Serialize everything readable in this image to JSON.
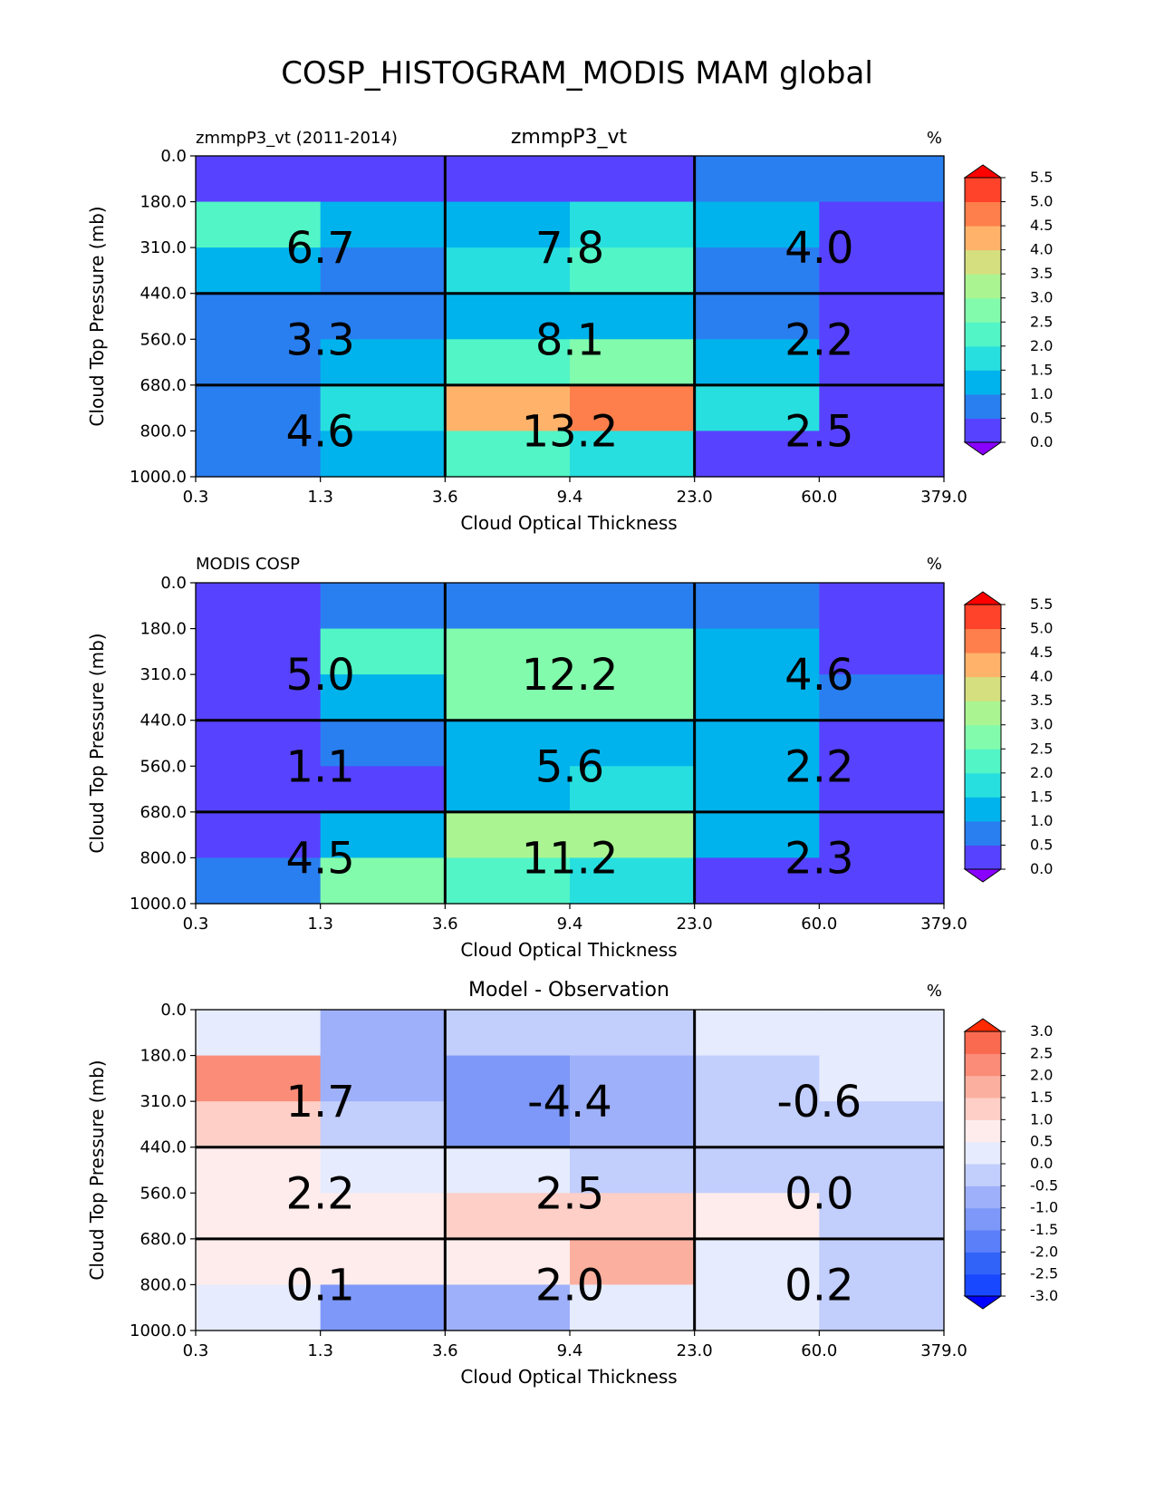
{
  "figure": {
    "title": "COSP_HISTOGRAM_MODIS MAM global"
  },
  "chart_data": [
    {
      "type": "heatmap",
      "title": "zmmpP3_vt",
      "subtitle_left": "zmmpP3_vt (2011-2014)",
      "units": "%",
      "xlabel": "Cloud Optical Thickness",
      "ylabel": "Cloud Top Pressure (mb)",
      "x_ticks": [
        "0.3",
        "1.3",
        "3.6",
        "9.4",
        "23.0",
        "60.0",
        "379.0"
      ],
      "y_ticks": [
        "0.0",
        "180.0",
        "310.0",
        "440.0",
        "560.0",
        "680.0",
        "800.0",
        "1000.0"
      ],
      "cells": [
        [
          0.0,
          0.0,
          0.0,
          0.0,
          0.6,
          0.6
        ],
        [
          2.3,
          1.4,
          1.4,
          1.8,
          1.4,
          0.3
        ],
        [
          1.4,
          0.8,
          1.8,
          2.3,
          0.8,
          0.3
        ],
        [
          0.8,
          0.8,
          1.4,
          1.4,
          0.8,
          0.3
        ],
        [
          0.8,
          1.4,
          2.3,
          2.8,
          1.4,
          0.3
        ],
        [
          0.8,
          1.8,
          4.3,
          4.8,
          1.8,
          0.3
        ],
        [
          0.8,
          1.4,
          2.3,
          1.8,
          0.3,
          0.3
        ]
      ],
      "group_labels": [
        [
          "6.7",
          "7.8",
          "4.0"
        ],
        [
          "3.3",
          "8.1",
          "2.2"
        ],
        [
          "4.6",
          "13.2",
          "2.5"
        ]
      ],
      "colorbar": {
        "ticks": [
          "0.0",
          "0.5",
          "1.0",
          "1.5",
          "2.0",
          "2.5",
          "3.0",
          "3.5",
          "4.0",
          "4.5",
          "5.0",
          "5.5"
        ],
        "levels": [
          0.0,
          0.5,
          1.0,
          1.5,
          2.0,
          2.5,
          3.0,
          3.5,
          4.0,
          4.5,
          5.0,
          5.5
        ],
        "under_color": "#8a00ff",
        "over_color": "#ff0000",
        "colors": [
          "#5743ff",
          "#2a7ff0",
          "#00b3ec",
          "#28dfdf",
          "#52f5c6",
          "#82fcac",
          "#aaf591",
          "#d5df7f",
          "#ffb36a",
          "#ff7f4c",
          "#ff432a"
        ]
      }
    },
    {
      "type": "heatmap",
      "title": "",
      "subtitle_left": "MODIS COSP",
      "units": "%",
      "xlabel": "Cloud Optical Thickness",
      "ylabel": "Cloud Top Pressure (mb)",
      "x_ticks": [
        "0.3",
        "1.3",
        "3.6",
        "9.4",
        "23.0",
        "60.0",
        "379.0"
      ],
      "y_ticks": [
        "0.0",
        "180.0",
        "310.0",
        "440.0",
        "560.0",
        "680.0",
        "800.0",
        "1000.0"
      ],
      "cells": [
        [
          0.3,
          0.8,
          0.8,
          0.8,
          0.8,
          0.3
        ],
        [
          0.3,
          2.3,
          2.8,
          2.8,
          1.4,
          0.3
        ],
        [
          0.3,
          1.4,
          2.8,
          2.8,
          1.4,
          0.8
        ],
        [
          0.3,
          0.8,
          1.4,
          1.4,
          1.4,
          0.3
        ],
        [
          0.3,
          0.3,
          1.4,
          1.8,
          1.4,
          0.3
        ],
        [
          0.3,
          1.4,
          3.3,
          3.3,
          1.4,
          0.3
        ],
        [
          0.8,
          2.8,
          2.3,
          1.8,
          0.3,
          0.3
        ]
      ],
      "group_labels": [
        [
          "5.0",
          "12.2",
          "4.6"
        ],
        [
          "1.1",
          "5.6",
          "2.2"
        ],
        [
          "4.5",
          "11.2",
          "2.3"
        ]
      ],
      "colorbar": {
        "ticks": [
          "0.0",
          "0.5",
          "1.0",
          "1.5",
          "2.0",
          "2.5",
          "3.0",
          "3.5",
          "4.0",
          "4.5",
          "5.0",
          "5.5"
        ],
        "levels": [
          0.0,
          0.5,
          1.0,
          1.5,
          2.0,
          2.5,
          3.0,
          3.5,
          4.0,
          4.5,
          5.0,
          5.5
        ],
        "under_color": "#8a00ff",
        "over_color": "#ff0000",
        "colors": [
          "#5743ff",
          "#2a7ff0",
          "#00b3ec",
          "#28dfdf",
          "#52f5c6",
          "#82fcac",
          "#aaf591",
          "#d5df7f",
          "#ffb36a",
          "#ff7f4c",
          "#ff432a"
        ]
      }
    },
    {
      "type": "heatmap",
      "title": "Model - Observation",
      "subtitle_left": "",
      "units": "%",
      "xlabel": "Cloud Optical Thickness",
      "ylabel": "Cloud Top Pressure (mb)",
      "x_ticks": [
        "0.3",
        "1.3",
        "3.6",
        "9.4",
        "23.0",
        "60.0",
        "379.0"
      ],
      "y_ticks": [
        "0.0",
        "180.0",
        "310.0",
        "440.0",
        "560.0",
        "680.0",
        "800.0",
        "1000.0"
      ],
      "cells": [
        [
          0.3,
          -0.8,
          -0.3,
          -0.3,
          0.3,
          0.3
        ],
        [
          2.3,
          -0.8,
          -1.3,
          -0.8,
          -0.3,
          0.3
        ],
        [
          1.3,
          -0.3,
          -1.3,
          -0.8,
          -0.3,
          -0.3
        ],
        [
          0.8,
          0.3,
          0.3,
          -0.3,
          -0.3,
          -0.3
        ],
        [
          0.8,
          0.8,
          1.3,
          1.3,
          0.8,
          -0.3
        ],
        [
          0.8,
          0.8,
          0.8,
          1.8,
          0.3,
          -0.3
        ],
        [
          0.3,
          -1.3,
          -0.8,
          0.3,
          0.3,
          -0.3
        ]
      ],
      "group_labels": [
        [
          "1.7",
          "-4.4",
          "-0.6"
        ],
        [
          "2.2",
          "2.5",
          "0.0"
        ],
        [
          "0.1",
          "2.0",
          "0.2"
        ]
      ],
      "colorbar": {
        "ticks": [
          "-3.0",
          "-2.5",
          "-2.0",
          "-1.5",
          "-1.0",
          "-0.5",
          "0.0",
          "0.5",
          "1.0",
          "1.5",
          "2.0",
          "2.5",
          "3.0"
        ],
        "levels": [
          -3.0,
          -2.5,
          -2.0,
          -1.5,
          -1.0,
          -0.5,
          0.0,
          0.5,
          1.0,
          1.5,
          2.0,
          2.5,
          3.0
        ],
        "under_color": "#0000ff",
        "over_color": "#ff2a00",
        "colors": [
          "#1848ff",
          "#3263f8",
          "#5b7ff8",
          "#7e98f9",
          "#9fb0fa",
          "#c2cefc",
          "#e6ebfd",
          "#fdeceb",
          "#fdcfc7",
          "#fbaf9f",
          "#fa8c78",
          "#f96a50"
        ]
      }
    }
  ]
}
